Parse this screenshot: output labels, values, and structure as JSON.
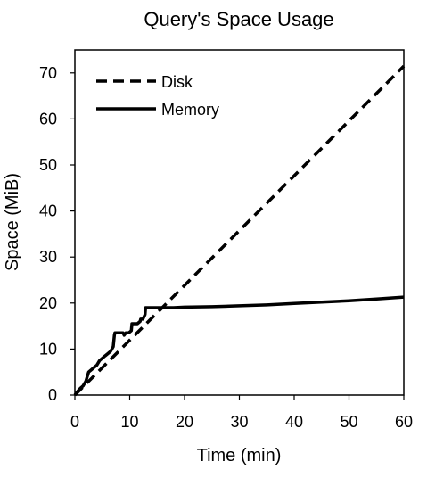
{
  "chart_data": {
    "type": "line",
    "title": "Query's Space Usage",
    "xlabel": "Time (min)",
    "ylabel": "Space (MiB)",
    "xlim": [
      0,
      60
    ],
    "ylim": [
      0,
      75
    ],
    "xticks": [
      0,
      10,
      20,
      30,
      40,
      50,
      60
    ],
    "yticks": [
      0,
      10,
      20,
      30,
      40,
      50,
      60,
      70
    ],
    "grid": false,
    "legend_position": "top-left",
    "series": [
      {
        "name": "Disk",
        "style": "dashed",
        "color": "#000000",
        "x": [
          0,
          60
        ],
        "y": [
          0,
          71.5
        ]
      },
      {
        "name": "Memory",
        "style": "solid",
        "color": "#000000",
        "x": [
          0,
          0.5,
          1.0,
          1.5,
          2.0,
          2.5,
          3.0,
          3.5,
          4.0,
          4.5,
          5.0,
          5.5,
          6.0,
          6.5,
          7.0,
          7.2,
          7.3,
          7.8,
          8.3,
          8.8,
          9.0,
          9.3,
          9.8,
          10.3,
          10.4,
          10.9,
          11.4,
          11.9,
          12.0,
          12.4,
          12.8,
          12.9,
          13.3,
          14,
          16,
          18,
          20,
          25,
          30,
          35,
          40,
          45,
          50,
          55,
          60
        ],
        "y": [
          0,
          0.8,
          1.5,
          2.0,
          3.0,
          5.0,
          5.5,
          6.0,
          6.5,
          7.5,
          8.0,
          8.5,
          9.0,
          9.5,
          10.5,
          13.0,
          13.5,
          13.5,
          13.5,
          13.5,
          13.0,
          13.5,
          13.5,
          14.0,
          15.5,
          15.5,
          15.5,
          16.0,
          16.5,
          16.5,
          17.5,
          19.0,
          19.0,
          19.0,
          19.0,
          19.0,
          19.1,
          19.2,
          19.4,
          19.6,
          19.9,
          20.2,
          20.5,
          20.9,
          21.3
        ]
      }
    ]
  }
}
